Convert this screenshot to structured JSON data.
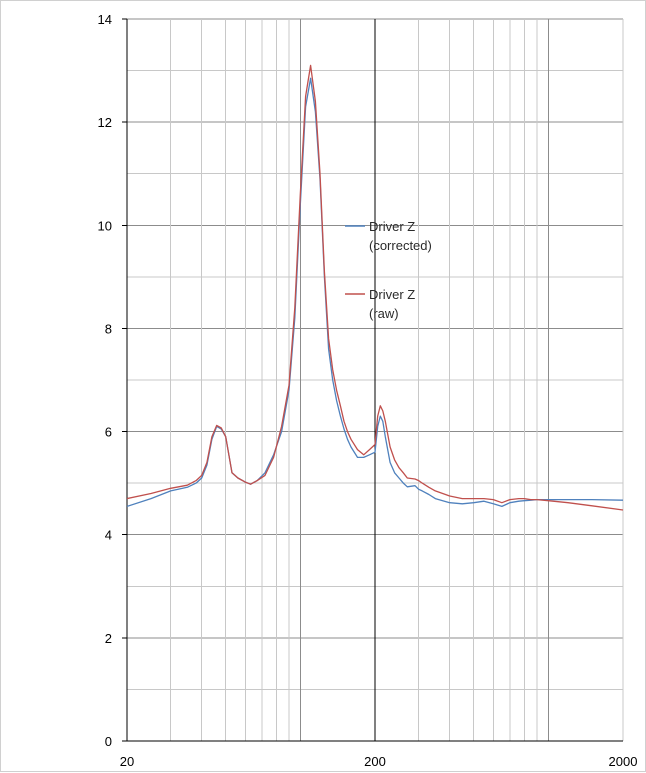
{
  "chart_data": {
    "type": "line",
    "x_scale": "log",
    "xlim": [
      20,
      2000
    ],
    "ylim": [
      0,
      14
    ],
    "y_ticks": [
      "0",
      "2",
      "4",
      "6",
      "8",
      "10",
      "12",
      "14"
    ],
    "x_ticks": [
      "20",
      "200",
      "2000"
    ],
    "grid": true,
    "legend_placement": "center",
    "series": [
      {
        "name": "Driver Z (corrected)",
        "legend_lines": [
          "Driver Z",
          "(corrected)"
        ],
        "color": "#4f81bd",
        "x": [
          20,
          25,
          30,
          35,
          38,
          40,
          42,
          44,
          46,
          48,
          50,
          53,
          56,
          60,
          63,
          67,
          72,
          78,
          84,
          90,
          95,
          100,
          105,
          110,
          115,
          120,
          125,
          130,
          135,
          140,
          145,
          150,
          155,
          160,
          170,
          180,
          190,
          200,
          205,
          210,
          215,
          220,
          230,
          240,
          250,
          260,
          270,
          290,
          300,
          310,
          330,
          350,
          400,
          450,
          500,
          550,
          600,
          650,
          700,
          760,
          800,
          850,
          900,
          1000,
          1200,
          1500,
          2000
        ],
        "y": [
          4.55,
          4.7,
          4.85,
          4.92,
          5.0,
          5.1,
          5.35,
          5.85,
          6.1,
          6.05,
          5.9,
          5.2,
          5.1,
          5.02,
          4.98,
          5.05,
          5.2,
          5.55,
          6.0,
          6.8,
          8.2,
          10.4,
          12.3,
          12.85,
          12.2,
          10.9,
          9.0,
          7.6,
          7.0,
          6.6,
          6.3,
          6.05,
          5.85,
          5.7,
          5.5,
          5.5,
          5.55,
          5.6,
          6.1,
          6.3,
          6.2,
          5.9,
          5.4,
          5.2,
          5.1,
          5.0,
          4.93,
          4.95,
          4.88,
          4.85,
          4.78,
          4.7,
          4.62,
          4.6,
          4.62,
          4.65,
          4.6,
          4.55,
          4.62,
          4.65,
          4.66,
          4.67,
          4.68,
          4.68,
          4.68,
          4.68,
          4.67
        ]
      },
      {
        "name": "Driver Z (raw)",
        "legend_lines": [
          "Driver Z",
          "(raw)"
        ],
        "color": "#c0504d",
        "x": [
          20,
          25,
          30,
          35,
          38,
          40,
          42,
          44,
          46,
          48,
          50,
          53,
          56,
          60,
          63,
          67,
          72,
          78,
          84,
          90,
          95,
          100,
          105,
          110,
          115,
          120,
          125,
          130,
          135,
          140,
          145,
          150,
          155,
          160,
          170,
          180,
          190,
          200,
          205,
          210,
          215,
          220,
          230,
          240,
          250,
          260,
          270,
          290,
          300,
          310,
          330,
          350,
          400,
          450,
          500,
          550,
          600,
          650,
          700,
          760,
          800,
          850,
          900,
          1000,
          1200,
          1500,
          2000
        ],
        "y": [
          4.7,
          4.8,
          4.9,
          4.96,
          5.05,
          5.15,
          5.4,
          5.9,
          6.12,
          6.07,
          5.9,
          5.2,
          5.1,
          5.02,
          4.98,
          5.05,
          5.15,
          5.5,
          6.1,
          6.9,
          8.4,
          10.6,
          12.5,
          13.1,
          12.4,
          11.0,
          9.1,
          7.8,
          7.2,
          6.8,
          6.5,
          6.2,
          6.0,
          5.85,
          5.65,
          5.55,
          5.65,
          5.75,
          6.3,
          6.5,
          6.4,
          6.2,
          5.7,
          5.45,
          5.3,
          5.2,
          5.1,
          5.08,
          5.05,
          5.0,
          4.92,
          4.85,
          4.75,
          4.7,
          4.7,
          4.7,
          4.68,
          4.62,
          4.68,
          4.7,
          4.7,
          4.68,
          4.68,
          4.66,
          4.62,
          4.56,
          4.48
        ]
      }
    ]
  }
}
